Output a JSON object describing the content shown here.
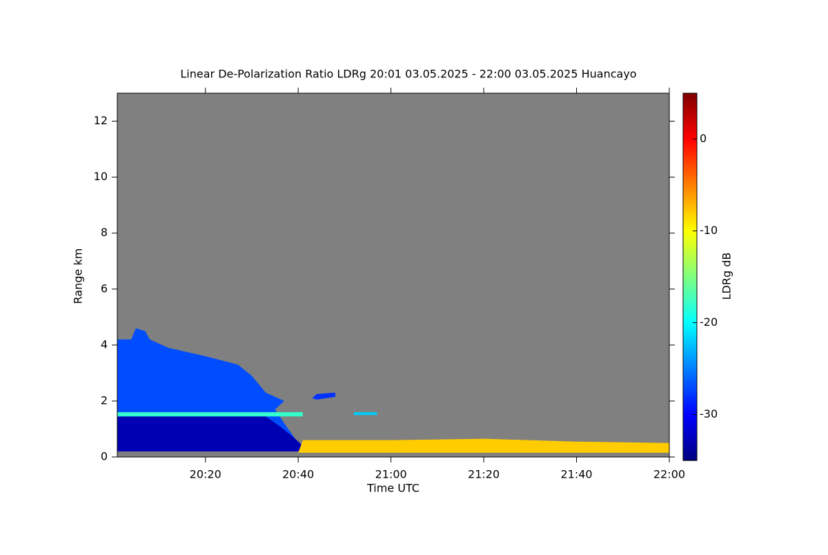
{
  "chart_data": {
    "type": "heatmap",
    "title": "Linear De-Polarization Ratio LDRg   20:01 03.05.2025 - 22:00 03.05.2025 Huancayo",
    "x_label": "Time UTC",
    "y_label": "Range km",
    "colorbar_label": "LDRg dB",
    "background": "#808080",
    "xlim": [
      "20:01",
      "22:00"
    ],
    "xticks": [
      "20:20",
      "20:40",
      "21:00",
      "21:20",
      "21:40",
      "22:00"
    ],
    "ylim": [
      0,
      13
    ],
    "yticks": [
      0,
      2,
      4,
      6,
      8,
      10,
      12
    ],
    "clim": [
      -35,
      5
    ],
    "cticks": [
      0,
      -10,
      -20,
      -30
    ],
    "colormap": "jet",
    "patches": [
      {
        "value": -27,
        "x": [
          "20:01",
          "20:01",
          "20:04",
          "20:05",
          "20:07",
          "20:08",
          "20:12",
          "20:20",
          "20:27",
          "20:30",
          "20:33",
          "20:37",
          "20:35",
          "20:37",
          "20:40",
          "20:40"
        ],
        "y": [
          0.2,
          4.2,
          4.2,
          4.6,
          4.5,
          4.2,
          3.9,
          3.6,
          3.3,
          2.9,
          2.3,
          2.0,
          1.7,
          1.2,
          0.5,
          0.2
        ]
      },
      {
        "value": -33,
        "x": [
          "20:01",
          "20:01",
          "20:33",
          "20:36",
          "20:39",
          "20:41",
          "20:41"
        ],
        "y": [
          0.2,
          1.45,
          1.45,
          1.1,
          0.7,
          0.4,
          0.2
        ]
      },
      {
        "value": -18,
        "x": [
          "20:01",
          "20:01",
          "20:41",
          "20:41"
        ],
        "y": [
          1.45,
          1.6,
          1.6,
          1.45
        ]
      },
      {
        "value": -8,
        "x": [
          "20:40",
          "20:41",
          "21:00",
          "21:20",
          "21:40",
          "22:00",
          "22:00"
        ],
        "y": [
          0.15,
          0.6,
          0.6,
          0.65,
          0.55,
          0.5,
          0.15
        ]
      },
      {
        "value": -28,
        "x": [
          "20:43",
          "20:44",
          "20:48",
          "20:48",
          "20:44"
        ],
        "y": [
          2.1,
          2.25,
          2.3,
          2.15,
          2.05
        ]
      },
      {
        "value": -22,
        "x": [
          "20:52",
          "20:52",
          "20:57",
          "20:57"
        ],
        "y": [
          1.5,
          1.6,
          1.6,
          1.5
        ]
      }
    ]
  }
}
